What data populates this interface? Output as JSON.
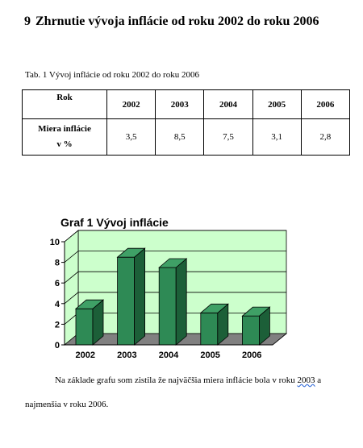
{
  "heading": {
    "number": "9",
    "text": "Zhrnutie vývoja inflácie od roku 2002 do roku 2006"
  },
  "table": {
    "caption": "Tab. 1 Vývoj inflácie od roku 2002 do roku 2006",
    "header_label": "Rok",
    "years": [
      "2002",
      "2003",
      "2004",
      "2005",
      "2006"
    ],
    "row_label_line1": "Miera inflácie",
    "row_label_line2": "v %",
    "values": [
      "3,5",
      "8,5",
      "7,5",
      "3,1",
      "2,8"
    ]
  },
  "chart_data": {
    "type": "bar",
    "title": "Graf 1 Vývoj inflácie",
    "categories": [
      "2002",
      "2003",
      "2004",
      "2005",
      "2006"
    ],
    "values": [
      3.5,
      8.5,
      7.5,
      3.1,
      2.8
    ],
    "ylim": [
      0,
      10
    ],
    "yticks": [
      "0",
      "2",
      "4",
      "6",
      "8",
      "10"
    ],
    "xlabel": "",
    "ylabel": "",
    "grid": true,
    "colors": {
      "bar_front": "#2e8a55",
      "bar_side": "#1c5f38",
      "bar_top": "#3fa066",
      "plot_back": "#ccffcc",
      "floor": "#808080"
    }
  },
  "paragraph": {
    "line1_before": "Na základe grafu som zistila že najväčšia miera inflácie bola v roku",
    "line1_year": "2003",
    "line1_after": " a",
    "line2": "najmenšia v roku 2006."
  }
}
